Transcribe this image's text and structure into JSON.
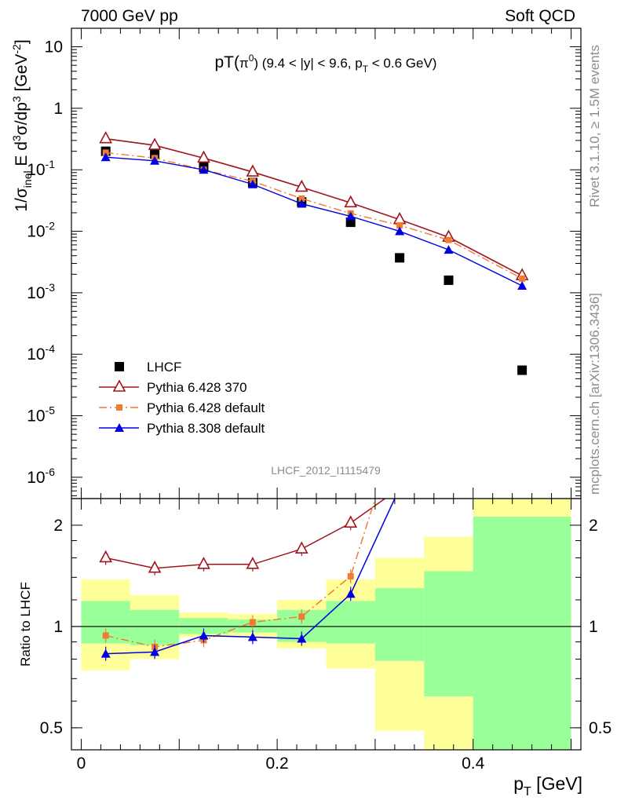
{
  "header": {
    "left": "7000 GeV pp",
    "right": "Soft QCD"
  },
  "side": {
    "rivet": "Rivet 3.1.10, ≥ 1.5M events",
    "mcplots": "mcplots.cern.ch [arXiv:1306.3436]"
  },
  "analysis_id": "LHCF_2012_I1115479",
  "chart_data": [
    {
      "type": "scatter",
      "panel": "main",
      "title": "pT(π⁰) (9.4 < |y| < 9.6, p_T < 0.6 GeV)",
      "ylabel": "1/σ_inel E d³σ/dp³ [GeV⁻²]",
      "yscale": "log",
      "ylim": [
        4.5e-07,
        20
      ],
      "xlim": [
        -0.01,
        0.51
      ],
      "yticks": [
        {
          "v": 10,
          "m": "10",
          "e": ""
        },
        {
          "v": 1,
          "m": "1",
          "e": ""
        },
        {
          "v": 0.1,
          "m": "10",
          "e": "-1"
        },
        {
          "v": 0.01,
          "m": "10",
          "e": "-2"
        },
        {
          "v": 0.001,
          "m": "10",
          "e": "-3"
        },
        {
          "v": 0.0001,
          "m": "10",
          "e": "-4"
        },
        {
          "v": 1e-05,
          "m": "10",
          "e": "-5"
        },
        {
          "v": 1e-06,
          "m": "10",
          "e": "-6"
        }
      ],
      "legend_position": "lower-left",
      "series": [
        {
          "name": "LHCF",
          "style": "data",
          "color": "#000000",
          "x": [
            0.025,
            0.075,
            0.125,
            0.175,
            0.225,
            0.275,
            0.325,
            0.375,
            0.45
          ],
          "y": [
            0.2,
            0.18,
            0.11,
            0.062,
            0.03,
            0.014,
            0.0037,
            0.0016,
            5.5e-05
          ]
        },
        {
          "name": "Pythia 6.428 370",
          "style": "open-triangle",
          "color": "#a0141e",
          "x": [
            0.025,
            0.075,
            0.125,
            0.175,
            0.225,
            0.275,
            0.325,
            0.375,
            0.45
          ],
          "y": [
            0.32,
            0.25,
            0.155,
            0.092,
            0.052,
            0.029,
            0.0155,
            0.008,
            0.0019
          ]
        },
        {
          "name": "Pythia 6.428 default",
          "style": "square-dashdot",
          "color": "#f07b32",
          "x": [
            0.025,
            0.075,
            0.125,
            0.175,
            0.225,
            0.275,
            0.325,
            0.375,
            0.45
          ],
          "y": [
            0.19,
            0.155,
            0.1,
            0.065,
            0.034,
            0.0195,
            0.0125,
            0.0072,
            0.0017
          ]
        },
        {
          "name": "Pythia 8.308 default",
          "style": "filled-triangle",
          "color": "#0000e0",
          "x": [
            0.025,
            0.075,
            0.125,
            0.175,
            0.225,
            0.275,
            0.325,
            0.375,
            0.45
          ],
          "y": [
            0.16,
            0.14,
            0.1,
            0.058,
            0.028,
            0.0175,
            0.01,
            0.005,
            0.0013
          ]
        }
      ]
    },
    {
      "type": "line",
      "panel": "ratio",
      "xlabel": "p_T [GeV]",
      "ylabel": "Ratio to LHCF",
      "yscale": "log",
      "ylim": [
        0.43,
        2.4
      ],
      "xlim": [
        -0.01,
        0.51
      ],
      "yticks": [
        {
          "v": 2,
          "label": "2"
        },
        {
          "v": 1,
          "label": "1"
        },
        {
          "v": 0.5,
          "label": "0.5"
        }
      ],
      "xticks": [
        {
          "v": 0,
          "label": "0"
        },
        {
          "v": 0.2,
          "label": "0.2"
        },
        {
          "v": 0.4,
          "label": "0.4"
        }
      ],
      "bands": [
        {
          "x0": 0.0,
          "x1": 0.05,
          "y_lo": 0.74,
          "y_hi": 1.38,
          "g_lo": 0.89,
          "g_hi": 1.19
        },
        {
          "x0": 0.05,
          "x1": 0.1,
          "y_lo": 0.8,
          "y_hi": 1.24,
          "g_lo": 0.88,
          "g_hi": 1.12
        },
        {
          "x0": 0.1,
          "x1": 0.15,
          "y_lo": 0.93,
          "y_hi": 1.1,
          "g_lo": 0.95,
          "g_hi": 1.06
        },
        {
          "x0": 0.15,
          "x1": 0.2,
          "y_lo": 0.93,
          "y_hi": 1.09,
          "g_lo": 0.96,
          "g_hi": 1.05
        },
        {
          "x0": 0.2,
          "x1": 0.25,
          "y_lo": 0.86,
          "y_hi": 1.2,
          "g_lo": 0.9,
          "g_hi": 1.12
        },
        {
          "x0": 0.25,
          "x1": 0.3,
          "y_lo": 0.75,
          "y_hi": 1.38,
          "g_lo": 0.89,
          "g_hi": 1.19
        },
        {
          "x0": 0.3,
          "x1": 0.35,
          "y_lo": 0.49,
          "y_hi": 1.6,
          "g_lo": 0.79,
          "g_hi": 1.3
        },
        {
          "x0": 0.35,
          "x1": 0.4,
          "y_lo": 0.43,
          "y_hi": 1.85,
          "g_lo": 0.62,
          "g_hi": 1.46
        },
        {
          "x0": 0.4,
          "x1": 0.5,
          "y_lo": 0.43,
          "y_hi": 2.4,
          "g_lo": 0.43,
          "g_hi": 2.12
        }
      ],
      "band_colors": {
        "outer": "#ffff99",
        "inner": "#99ff99"
      },
      "series": [
        {
          "name": "Pythia 6.428 370",
          "color": "#a0141e",
          "x": [
            0.025,
            0.075,
            0.125,
            0.175,
            0.225,
            0.275,
            0.31
          ],
          "y": [
            1.6,
            1.49,
            1.53,
            1.53,
            1.7,
            2.03,
            2.4
          ]
        },
        {
          "name": "Pythia 6.428 default",
          "color": "#f07b32",
          "x": [
            0.025,
            0.075,
            0.125,
            0.175,
            0.225,
            0.275,
            0.3
          ],
          "y": [
            0.94,
            0.87,
            0.91,
            1.03,
            1.07,
            1.41,
            2.4
          ]
        },
        {
          "name": "Pythia 8.308 default",
          "color": "#0000e0",
          "x": [
            0.025,
            0.075,
            0.125,
            0.175,
            0.225,
            0.275,
            0.32
          ],
          "y": [
            0.83,
            0.84,
            0.94,
            0.93,
            0.92,
            1.25,
            2.4
          ]
        }
      ]
    }
  ]
}
